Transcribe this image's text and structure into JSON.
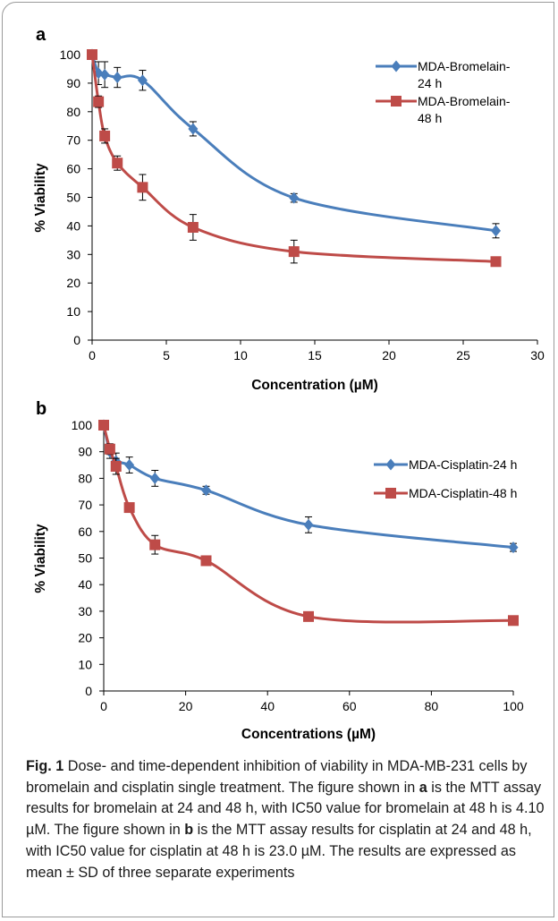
{
  "chart_data": [
    {
      "panel_label": "a",
      "type": "line",
      "xlabel": "Concentration (µM)",
      "ylabel": "% Viability",
      "xlim": [
        0,
        30
      ],
      "ylim": [
        0,
        100
      ],
      "xticks": [
        "0",
        "5",
        "10",
        "15",
        "20",
        "25",
        "30"
      ],
      "yticks": [
        "0",
        "10",
        "20",
        "30",
        "40",
        "50",
        "60",
        "70",
        "80",
        "90",
        "100"
      ],
      "grid": false,
      "legend_position": "top-right",
      "series": [
        {
          "name": "MDA-Bromelain-24 h",
          "legend_lines": [
            "MDA-Bromelain-",
            "24 h"
          ],
          "color": "#4a7ebb",
          "marker": "diamond",
          "x": [
            0,
            0.43,
            0.85,
            1.7,
            3.4,
            6.8,
            13.6,
            27.2
          ],
          "y": [
            100,
            93.5,
            93,
            92,
            91,
            74,
            49.8,
            38.3
          ],
          "error": [
            0,
            4,
            4.5,
            3.5,
            3.5,
            2.5,
            1.5,
            2.5
          ]
        },
        {
          "name": "MDA-Bromelain-48 h",
          "legend_lines": [
            "MDA-Bromelain-",
            "48 h"
          ],
          "color": "#be4b48",
          "marker": "square",
          "x": [
            0,
            0.43,
            0.85,
            1.7,
            3.4,
            6.8,
            13.6,
            27.2
          ],
          "y": [
            100,
            83.5,
            71.5,
            62,
            53.5,
            39.5,
            31,
            27.5
          ],
          "error": [
            0,
            2,
            2.5,
            2.5,
            4.5,
            4.5,
            4,
            0
          ]
        }
      ]
    },
    {
      "panel_label": "b",
      "type": "line",
      "xlabel": "Concentrations (µM)",
      "ylabel": "% Viability",
      "xlim": [
        0,
        100
      ],
      "ylim": [
        0,
        100
      ],
      "xticks": [
        "0",
        "20",
        "40",
        "60",
        "80",
        "100"
      ],
      "yticks": [
        "0",
        "10",
        "20",
        "30",
        "40",
        "50",
        "60",
        "70",
        "80",
        "90",
        "100"
      ],
      "grid": false,
      "legend_position": "right",
      "series": [
        {
          "name": "MDA-Cisplatin-24 h",
          "legend_lines": [
            "MDA-Cisplatin-24 h"
          ],
          "color": "#4a7ebb",
          "marker": "diamond",
          "x": [
            0,
            1.5,
            3,
            6.25,
            12.5,
            25,
            50,
            100
          ],
          "y": [
            100,
            90,
            86.5,
            85,
            80,
            75.5,
            62.5,
            54
          ],
          "error": [
            0,
            2.5,
            3,
            3,
            3,
            1.5,
            3,
            1.5
          ]
        },
        {
          "name": "MDA-Cisplatin-48 h",
          "legend_lines": [
            "MDA-Cisplatin-48 h"
          ],
          "color": "#be4b48",
          "marker": "square",
          "x": [
            0,
            1.5,
            3,
            6.25,
            12.5,
            25,
            50,
            100
          ],
          "y": [
            100,
            91,
            84.5,
            69,
            55,
            49,
            28,
            26.5
          ],
          "error": [
            0,
            2,
            3,
            1,
            3.5,
            1,
            1.5,
            0
          ]
        }
      ]
    }
  ],
  "caption": {
    "label": "Fig. 1",
    "parts": [
      "  Dose- and time-dependent inhibition of viability in MDA-MB-231 cells by bromelain and cisplatin single treatment. The figure shown in ",
      "a",
      " is the MTT assay results for bromelain at 24 and 48 h, with IC50 value for bromelain at 48 h is 4.10 µM. The figure shown in ",
      "b",
      " is the MTT assay results for cisplatin at 24 and 48 h, with IC50 value for cisplatin at 48 h is 23.0 µM. The results are expressed as mean ± SD of three separate experiments"
    ]
  }
}
